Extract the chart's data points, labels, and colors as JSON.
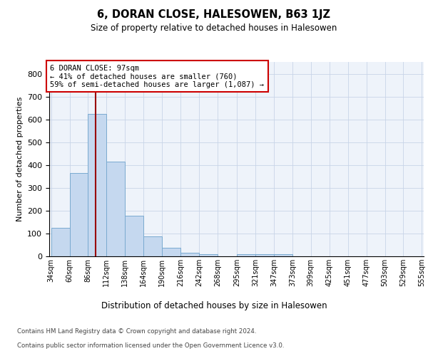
{
  "title": "6, DORAN CLOSE, HALESOWEN, B63 1JZ",
  "subtitle": "Size of property relative to detached houses in Halesowen",
  "xlabel": "Distribution of detached houses by size in Halesowen",
  "ylabel": "Number of detached properties",
  "bin_left_edges": [
    34,
    60,
    86,
    112,
    138,
    164,
    190,
    216,
    242,
    268,
    295,
    321,
    347,
    373,
    399,
    425,
    451,
    477,
    503,
    529
  ],
  "bin_width": 26,
  "bar_heights": [
    125,
    365,
    625,
    415,
    178,
    88,
    37,
    15,
    10,
    0,
    10,
    10,
    10,
    0,
    0,
    0,
    0,
    0,
    0,
    0
  ],
  "xtick_labels": [
    "34sqm",
    "60sqm",
    "86sqm",
    "112sqm",
    "138sqm",
    "164sqm",
    "190sqm",
    "216sqm",
    "242sqm",
    "268sqm",
    "295sqm",
    "321sqm",
    "347sqm",
    "373sqm",
    "399sqm",
    "425sqm",
    "451sqm",
    "477sqm",
    "503sqm",
    "529sqm",
    "555sqm"
  ],
  "property_size_sqm": 97,
  "annotation_line1": "6 DORAN CLOSE: 97sqm",
  "annotation_line2": "← 41% of detached houses are smaller (760)",
  "annotation_line3": "59% of semi-detached houses are larger (1,087) →",
  "annotation_box_edgecolor": "#cc0000",
  "bar_face_color": "#c5d8ef",
  "bar_edge_color": "#7aaad0",
  "vline_color": "#990000",
  "grid_color": "#c8d4e8",
  "bg_color": "#eef3fa",
  "ylim": [
    0,
    850
  ],
  "yticks": [
    0,
    100,
    200,
    300,
    400,
    500,
    600,
    700,
    800
  ],
  "footer_line1": "Contains HM Land Registry data © Crown copyright and database right 2024.",
  "footer_line2": "Contains public sector information licensed under the Open Government Licence v3.0."
}
